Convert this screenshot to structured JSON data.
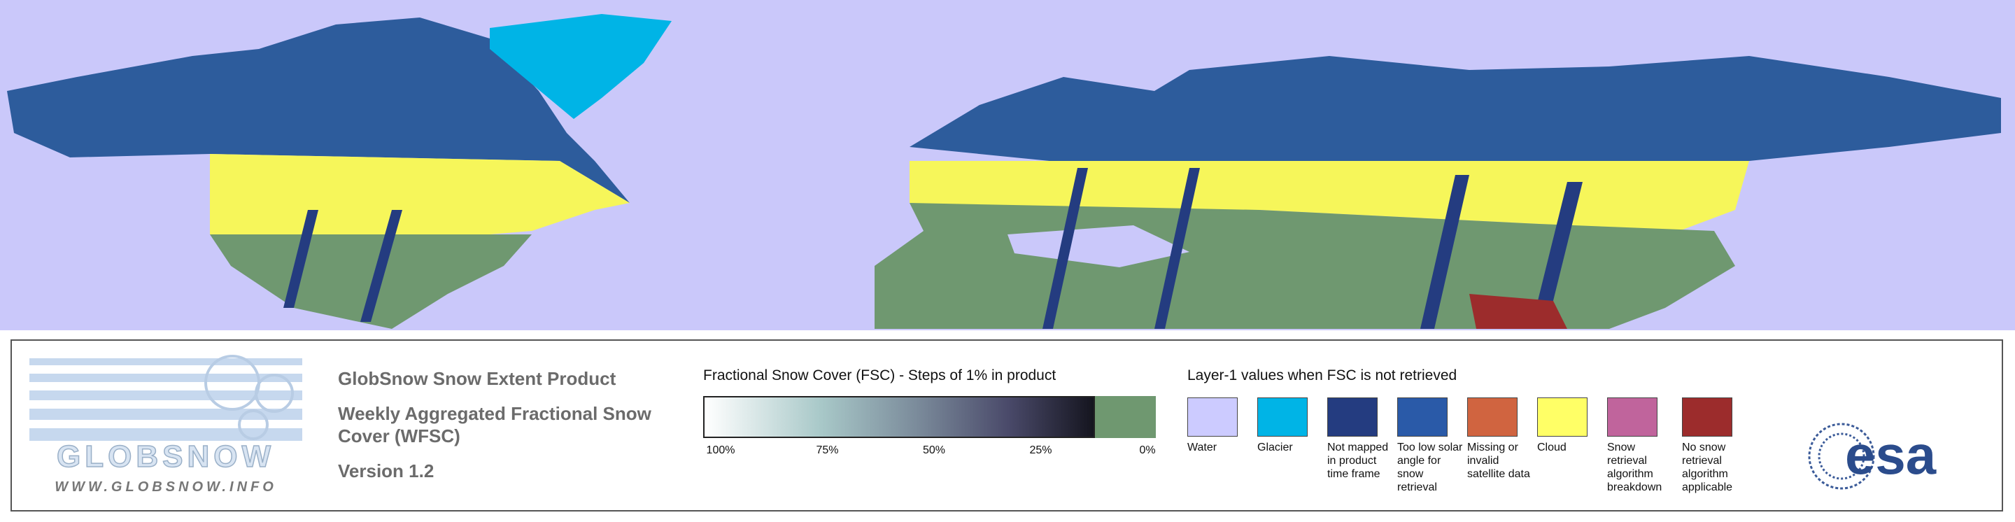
{
  "logo": {
    "name": "GLOBSNOW",
    "url": "WWW.GLOBSNOW.INFO"
  },
  "header": {
    "title": "GlobSnow Snow Extent Product",
    "subtitle": "Weekly Aggregated Fractional Snow Cover (WFSC)",
    "version": "Version 1.2"
  },
  "fsc_scale": {
    "title": "Fractional Snow Cover (FSC) - Steps of 1% in product",
    "ticks": [
      {
        "value": 100,
        "label": "100%"
      },
      {
        "value": 75,
        "label": "75%"
      },
      {
        "value": 50,
        "label": "50%"
      },
      {
        "value": 25,
        "label": "25%"
      },
      {
        "value": 0,
        "label": "0%"
      }
    ]
  },
  "layer1": {
    "title": "Layer-1 values when FSC is not retrieved",
    "items": [
      {
        "label": "Water",
        "color": "#cccbff"
      },
      {
        "label": "Glacier",
        "color": "#00b4e6"
      },
      {
        "label": "Not mapped in product time frame",
        "color": "#243c80"
      },
      {
        "label": "Too low solar angle for snow retrieval",
        "color": "#2a5aa8"
      },
      {
        "label": "Missing or invalid satellite data",
        "color": "#d06440"
      },
      {
        "label": "Cloud",
        "color": "#ffff66"
      },
      {
        "label": "Snow retrieval algorithm breakdown",
        "color": "#c0649c"
      },
      {
        "label": "No snow retrieval algorithm applicable",
        "color": "#9c2c2c"
      }
    ]
  },
  "agency": "esa"
}
